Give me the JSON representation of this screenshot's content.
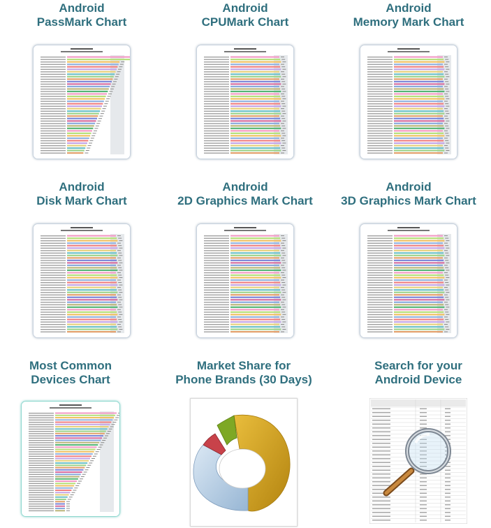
{
  "cards": [
    {
      "line1": "Android",
      "line2": "PassMark Chart",
      "icon": "bar-chart-thumbnail-icon"
    },
    {
      "line1": "Android",
      "line2": "CPUMark Chart",
      "icon": "bar-chart-thumbnail-icon"
    },
    {
      "line1": "Android",
      "line2": "Memory Mark Chart",
      "icon": "bar-chart-thumbnail-icon"
    },
    {
      "line1": "Android",
      "line2": "Disk Mark Chart",
      "icon": "bar-chart-thumbnail-icon"
    },
    {
      "line1": "Android",
      "line2": "2D Graphics Mark Chart",
      "icon": "bar-chart-thumbnail-icon"
    },
    {
      "line1": "Android",
      "line2": "3D Graphics Mark Chart",
      "icon": "bar-chart-thumbnail-icon"
    },
    {
      "line1": "Most Common",
      "line2": "Devices Chart",
      "icon": "bar-chart-thumbnail-icon"
    },
    {
      "line1": "Market Share for",
      "line2": "Phone Brands (30 Days)",
      "icon": "donut-chart-icon"
    },
    {
      "line1": "Search for your",
      "line2": "Android Device",
      "icon": "magnifying-glass-table-icon"
    }
  ],
  "colors": {
    "title": "#2f6f7e",
    "donut_gold": "#d7a321",
    "donut_blue": "#b8d1e8",
    "donut_red": "#c8424a",
    "donut_green": "#7ea825"
  }
}
